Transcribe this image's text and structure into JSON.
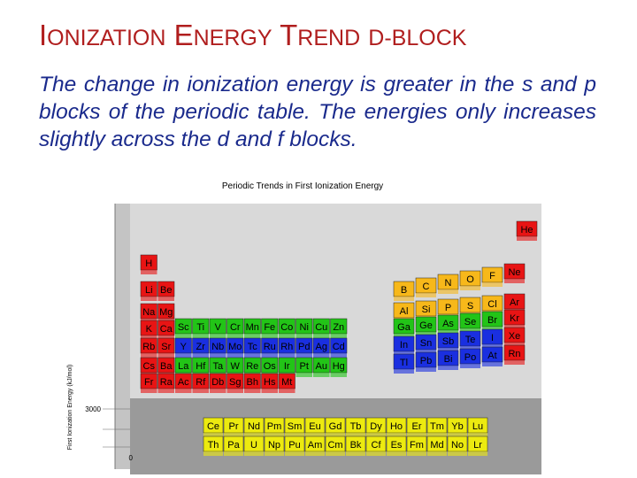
{
  "slide": {
    "title_parts": [
      {
        "cap": "I",
        "rest": "ONIZATION"
      },
      {
        "cap": "E",
        "rest": "NERGY"
      },
      {
        "cap": "T",
        "rest": "REND"
      },
      {
        "cap": "",
        "rest": "D-BLOCK"
      }
    ],
    "body": "The change in ionization energy is greater in the s and p blocks of the periodic table. The energies only increases slightly across the d and f blocks."
  },
  "figure": {
    "title": "Periodic Trends in First Ionization Energy",
    "axis_label": "First Ionization Energy (kJ/mol)",
    "axis_ticks": [
      "3000",
      "0"
    ],
    "colors": {
      "s_block": "#e81414",
      "d_block": "#22c417",
      "d_block_alt": "#1a2fe0",
      "p_block": "#f7b81a",
      "f_block": "#ecea10",
      "noble": "#e81414",
      "floor": "#9a9a9a",
      "back_wall": "#d9d9d9",
      "side_wall": "#c4c4c4"
    },
    "rows": [
      {
        "group": "s",
        "elements": [
          "H"
        ]
      },
      {
        "group": "s",
        "elements": [
          "Li",
          "Be"
        ]
      },
      {
        "group": "s",
        "elements": [
          "Na",
          "Mg"
        ]
      },
      {
        "group": "sd",
        "elements": [
          "K",
          "Ca",
          "Sc",
          "Ti",
          "V",
          "Cr",
          "Mn",
          "Fe",
          "Co",
          "Ni",
          "Cu",
          "Zn"
        ]
      },
      {
        "group": "sd",
        "elements": [
          "Rb",
          "Sr",
          "Y",
          "Zr",
          "Nb",
          "Mo",
          "Tc",
          "Ru",
          "Rh",
          "Pd",
          "Ag",
          "Cd"
        ]
      },
      {
        "group": "sd",
        "elements": [
          "Cs",
          "Ba",
          "La",
          "Hf",
          "Ta",
          "W",
          "Re",
          "Os",
          "Ir",
          "Pt",
          "Au",
          "Hg"
        ]
      },
      {
        "group": "sd",
        "elements": [
          "Fr",
          "Ra",
          "Ac",
          "Rf",
          "Db",
          "Sg",
          "Bh",
          "Hs",
          "Mt"
        ]
      }
    ],
    "p_block": [
      [
        "He"
      ],
      [
        "B",
        "C",
        "N",
        "O",
        "F",
        "Ne"
      ],
      [
        "Al",
        "Si",
        "P",
        "S",
        "Cl",
        "Ar"
      ],
      [
        "Ga",
        "Ge",
        "As",
        "Se",
        "Br",
        "Kr"
      ],
      [
        "In",
        "Sn",
        "Sb",
        "Te",
        "I",
        "Xe"
      ],
      [
        "Tl",
        "Pb",
        "Bi",
        "Po",
        "At",
        "Rn"
      ]
    ],
    "f_block": [
      [
        "Ce",
        "Pr",
        "Nd",
        "Pm",
        "Sm",
        "Eu",
        "Gd",
        "Tb",
        "Dy",
        "Ho",
        "Er",
        "Tm",
        "Yb",
        "Lu"
      ],
      [
        "Th",
        "Pa",
        "U",
        "Np",
        "Pu",
        "Am",
        "Cm",
        "Bk",
        "Cf",
        "Es",
        "Fm",
        "Md",
        "No",
        "Lr"
      ]
    ]
  }
}
